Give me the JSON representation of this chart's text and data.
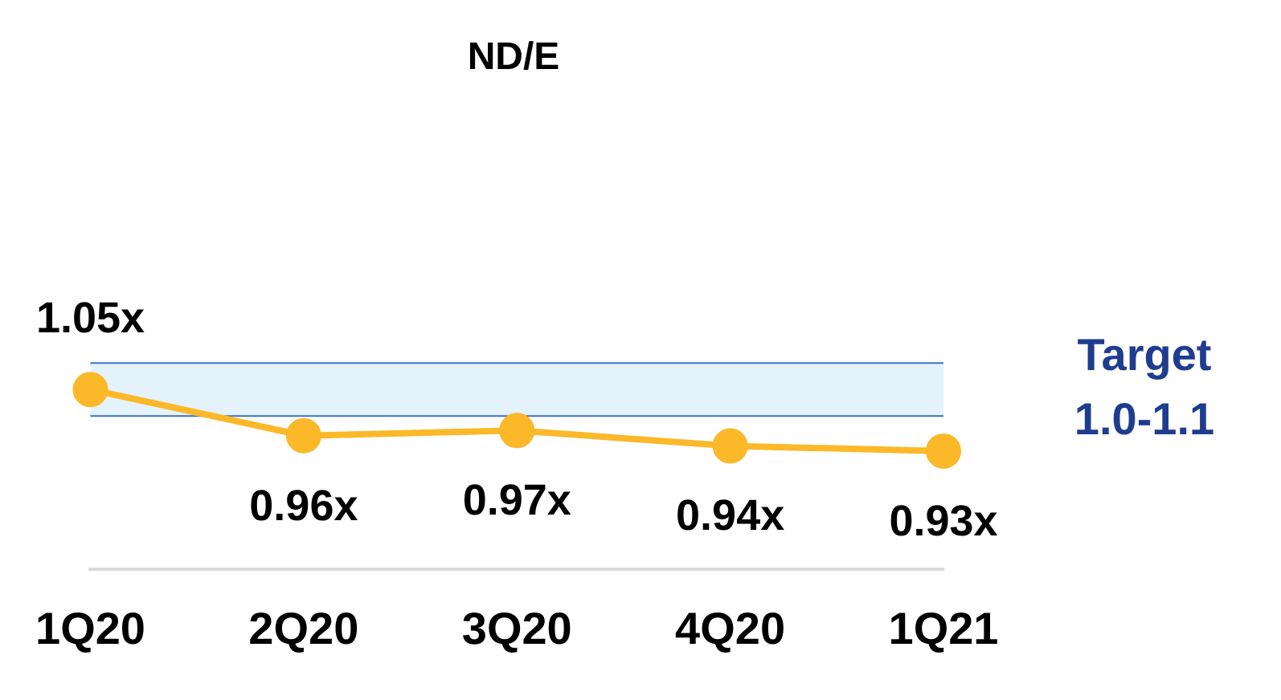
{
  "chart_data": {
    "type": "line",
    "title": "ND/E",
    "categories": [
      "1Q20",
      "2Q20",
      "3Q20",
      "4Q20",
      "1Q21"
    ],
    "series": [
      {
        "color": "#fbb829",
        "values": [
          1.05,
          0.96,
          0.97,
          0.94,
          0.93
        ],
        "value_labels": [
          "1.05x",
          "0.96x",
          "0.97x",
          "0.94x",
          "0.93x"
        ]
      }
    ],
    "tick_labels": "x",
    "ref_lines": [
      {
        "axis": "y",
        "value": 1.1,
        "color": "#3d6fc1"
      },
      {
        "axis": "y",
        "value": 1.0,
        "color": "#3d6fc1"
      }
    ],
    "marker": "circle",
    "grid": false,
    "legend": false,
    "bands": [
      {
        "axis": "y",
        "from": 1.0,
        "to": 1.1,
        "label": "Target\n1.0-1.1",
        "color": "#e4f3fb"
      }
    ]
  }
}
